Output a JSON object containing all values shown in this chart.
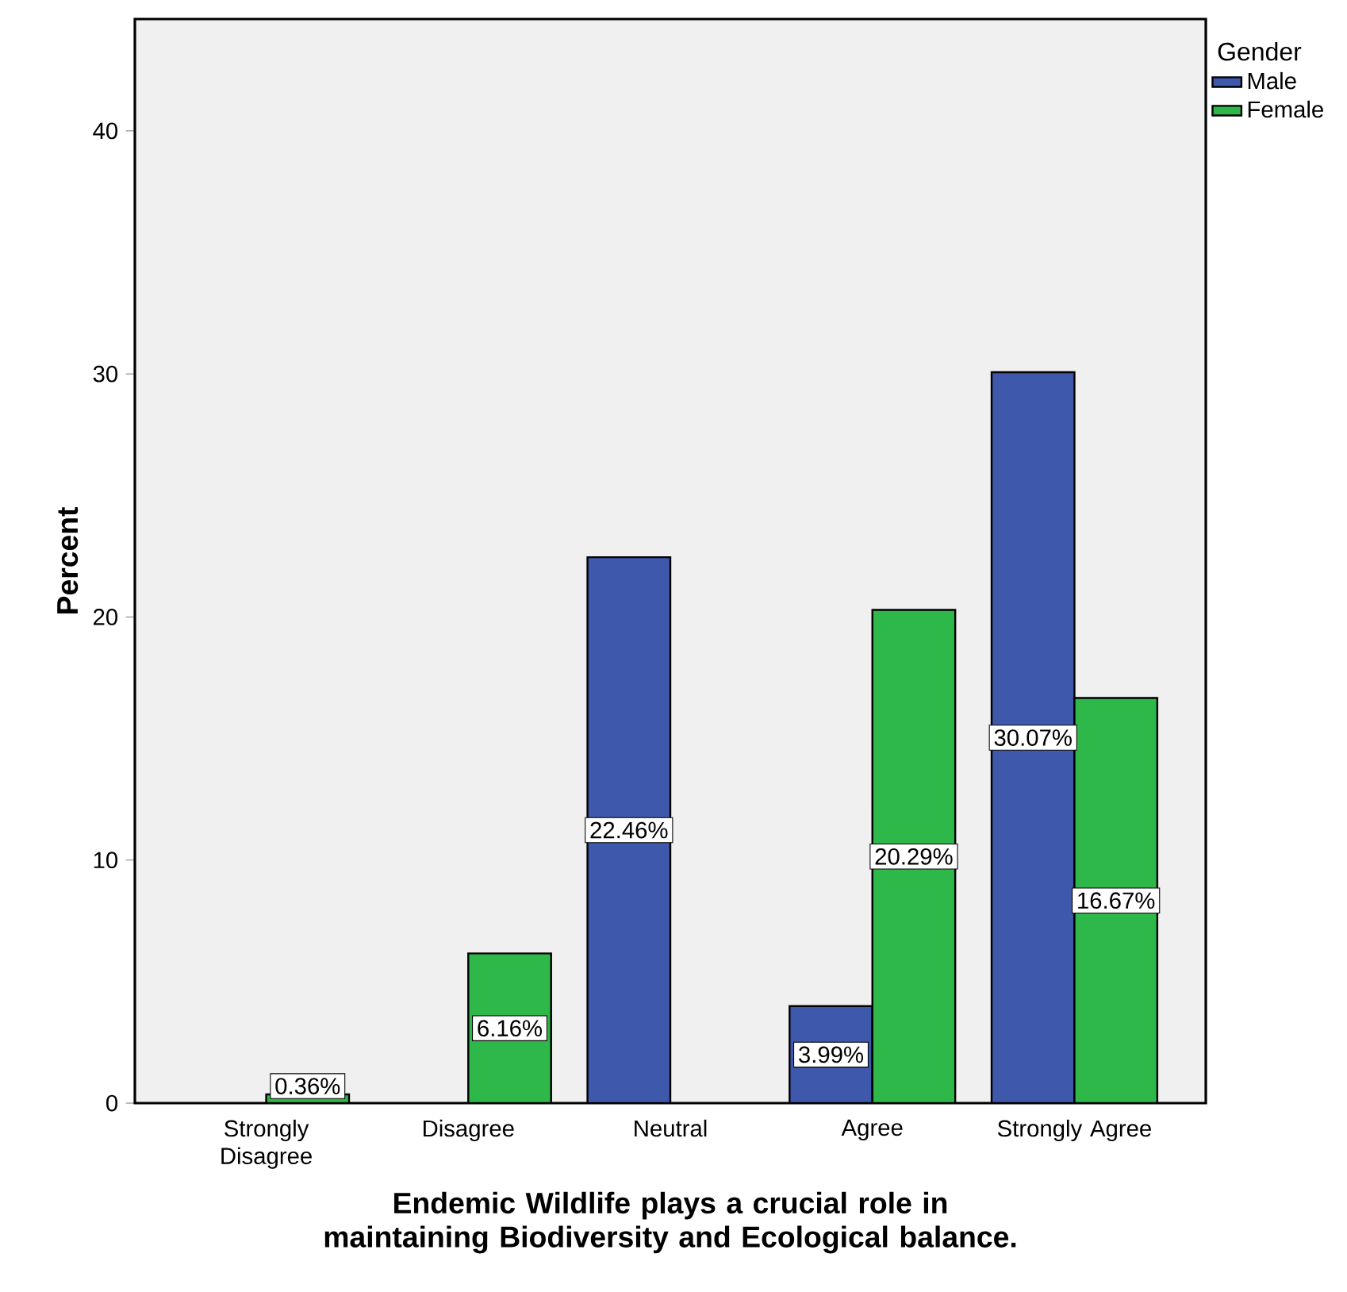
{
  "chart_data": {
    "type": "bar",
    "xlabel": "Endemic Wildlife plays a crucial role in maintaining Biodiversity and Ecological balance.",
    "ylabel": "Percent",
    "legend_title": "Gender",
    "legend": "top right",
    "categories": [
      "Strongly Disagree",
      "Disagree",
      "Neutral",
      "Agree",
      "Strongly Agree"
    ],
    "series": [
      {
        "name": "Male",
        "color": "#3e58ac",
        "values": [
          null,
          null,
          22.46,
          3.99,
          30.07
        ],
        "value_labels": [
          null,
          null,
          "22.46%",
          "3.99%",
          "30.07%"
        ]
      },
      {
        "name": "Female",
        "color": "#2eb84a",
        "values": [
          0.36,
          6.16,
          null,
          20.29,
          16.67
        ],
        "value_labels": [
          "0.36%",
          "6.16%",
          null,
          "20.29%",
          "16.67%"
        ]
      }
    ],
    "ylim": [
      0,
      44.6
    ],
    "yticks": [
      0,
      10,
      20,
      30,
      40
    ],
    "grid": false
  }
}
